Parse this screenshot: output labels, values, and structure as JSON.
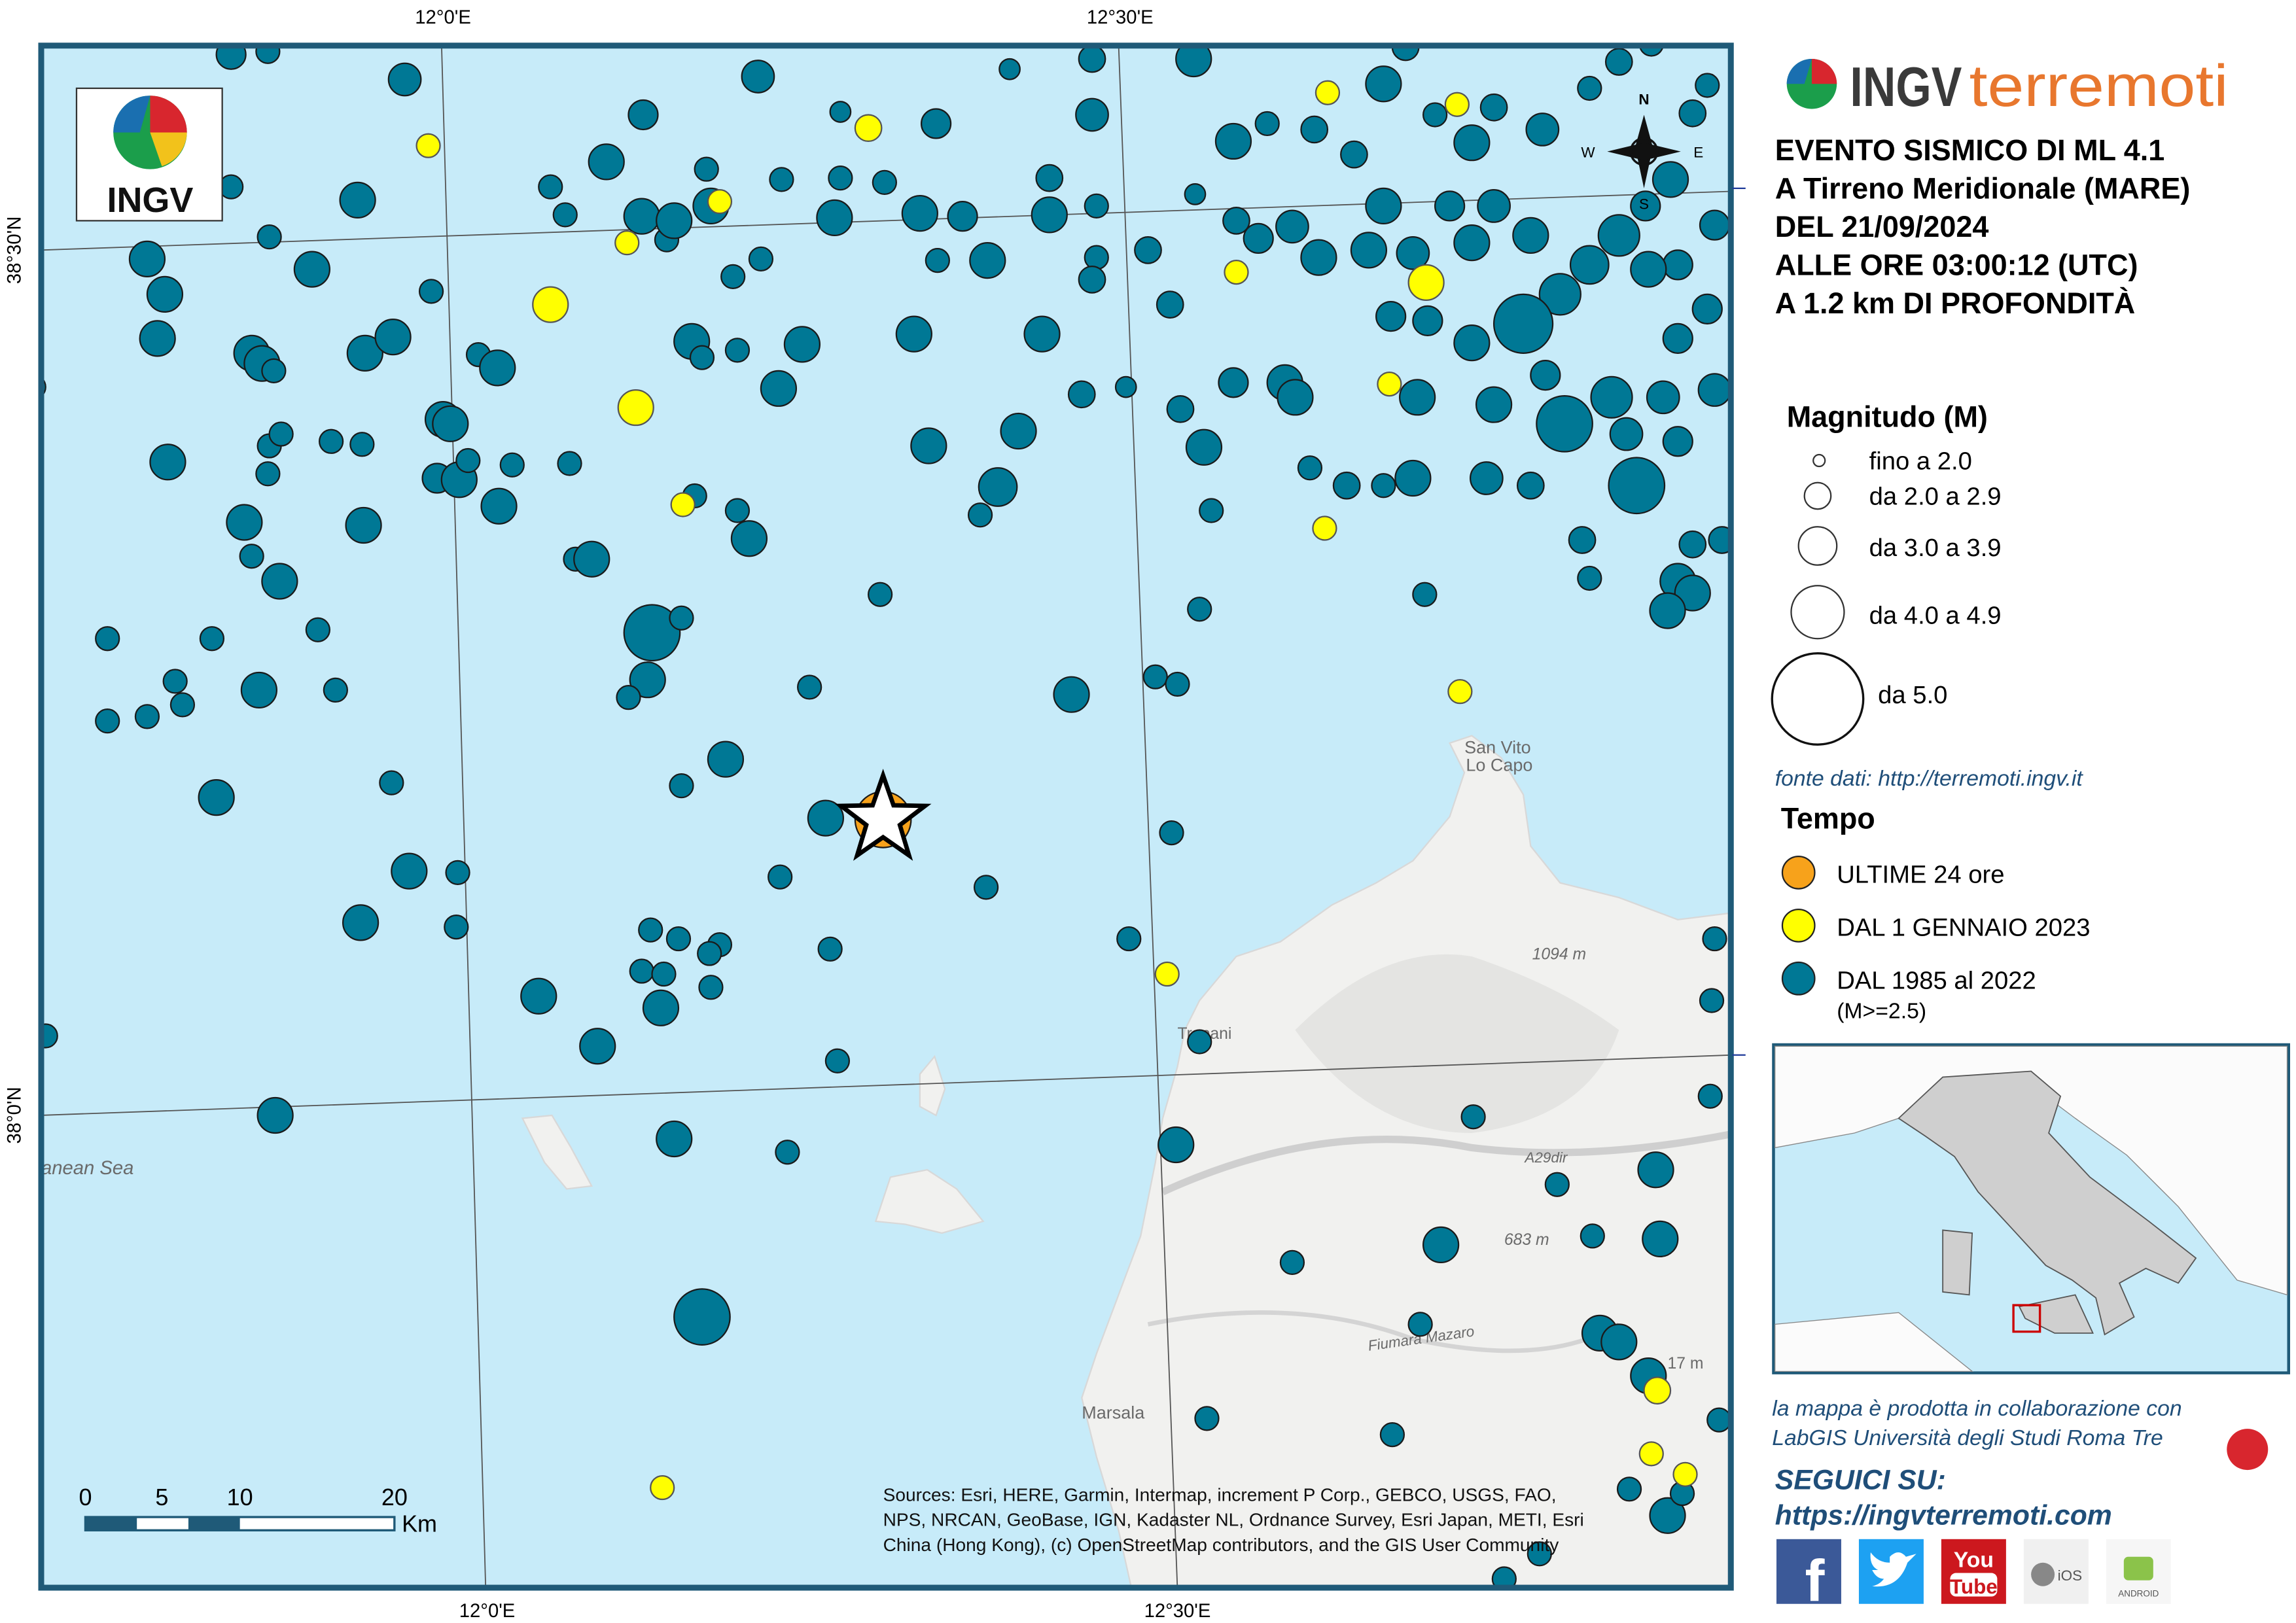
{
  "map": {
    "graticule": {
      "top": [
        "12°0'E",
        "12°30'E"
      ],
      "bottom": [
        "12°0'E",
        "12°30'E"
      ],
      "left": [
        "38°30'N",
        "38°0'N"
      ]
    },
    "logo": "INGV",
    "compass": {
      "n": "N",
      "s": "S",
      "e": "E",
      "w": "W"
    },
    "places": [
      "San Vito",
      "Lo Capo",
      "Trapani",
      "Marsala",
      "1094 m",
      "683 m",
      "A29dir",
      "Fiumara Mazaro",
      "anean Sea",
      "17 m"
    ],
    "scale_bar": {
      "labels": [
        "0",
        "5",
        "10",
        "20"
      ],
      "unit": "Km"
    },
    "sources": [
      "Sources: Esri, HERE, Garmin, Intermap, increment P Corp., GEBCO, USGS, FAO,",
      "NPS, NRCAN, GeoBase, IGN, Kadaster NL, Ordnance Survey, Esri Japan, METI, Esri",
      "China (Hong Kong), (c) OpenStreetMap contributors, and the GIS User Community"
    ]
  },
  "header": {
    "brand_a": "INGV",
    "brand_b": "terremoti"
  },
  "event": [
    "EVENTO SISMICO DI ML 4.1",
    "A Tirreno Meridionale (MARE)",
    "DEL 21/09/2024",
    "ALLE ORE 03:00:12 (UTC)",
    "A 1.2 km DI PROFONDITÀ"
  ],
  "legend": {
    "magnitude_title": "Magnitudo (M)",
    "magnitude_classes": [
      "fino a 2.0",
      "da 2.0 a 2.9",
      "da 3.0 a 3.9",
      "da 4.0 a 4.9",
      "da 5.0"
    ],
    "source": "fonte dati: http://terremoti.ingv.it",
    "time_title": "Tempo",
    "time_classes": [
      "ULTIME 24 ore",
      "DAL 1 GENNAIO 2023",
      "DAL 1985 al 2022"
    ],
    "time_note": "(M>=2.5)"
  },
  "footer": {
    "collaboration": [
      "la mappa è prodotta in collaborazione con",
      "LabGIS Università degli Studi Roma Tre"
    ],
    "follow": "SEGUICI SU:",
    "url": "https://ingvterremoti.com",
    "social": {
      "youtube": [
        "You",
        "Tube"
      ],
      "ios": "iOS",
      "android": "ANDROID"
    }
  }
}
